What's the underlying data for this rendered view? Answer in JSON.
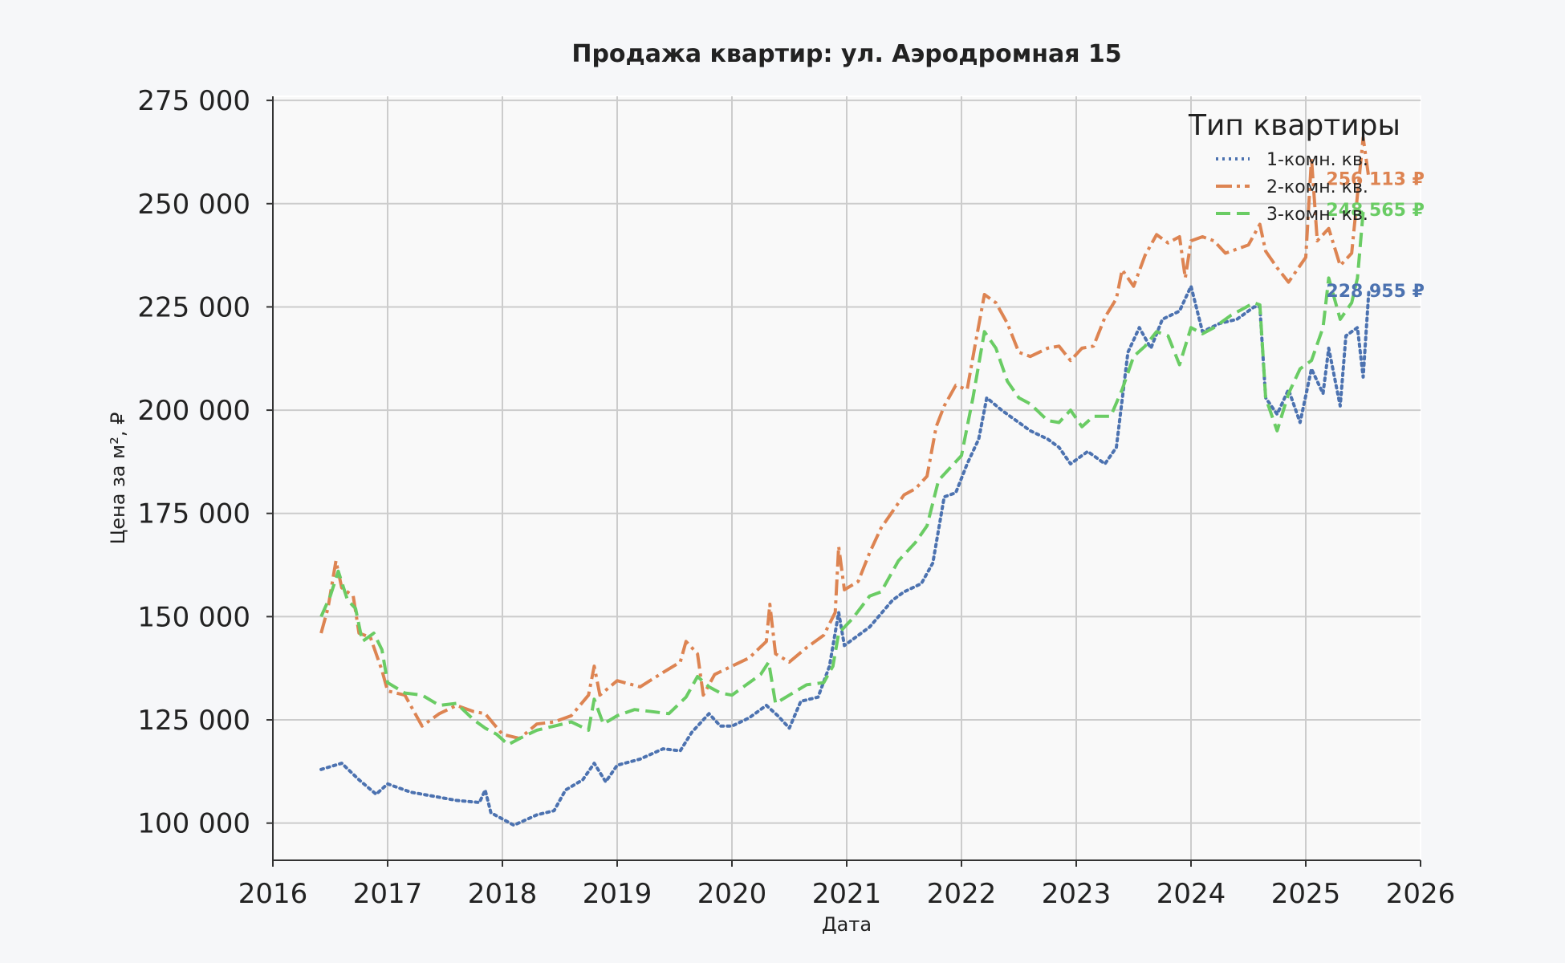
{
  "chart_data": {
    "type": "line",
    "title": "Продажа квартир: ул. Аэродромная 15",
    "xlabel": "Дата",
    "ylabel": "Цена за м², ₽",
    "xlim": [
      2016.0,
      2026.0
    ],
    "ylim": [
      91000,
      276000
    ],
    "x_ticks": [
      2016,
      2017,
      2018,
      2019,
      2020,
      2021,
      2022,
      2023,
      2024,
      2025,
      2026
    ],
    "x_tick_labels": [
      "2016",
      "2017",
      "2018",
      "2019",
      "2020",
      "2021",
      "2022",
      "2023",
      "2024",
      "2025",
      "2026"
    ],
    "y_ticks": [
      100000,
      125000,
      150000,
      175000,
      200000,
      225000,
      250000,
      275000
    ],
    "y_tick_labels": [
      "100 000",
      "125 000",
      "150 000",
      "175 000",
      "200 000",
      "225 000",
      "250 000",
      "275 000"
    ],
    "grid": true,
    "legend": {
      "title": "Тип квартиры",
      "placement": "top-right"
    },
    "series": [
      {
        "name": "1-комн. кв.",
        "color": "#4c72b0",
        "dash": "dotted",
        "end_label": "228 955 ₽",
        "points": [
          [
            2016.42,
            113000
          ],
          [
            2016.6,
            114500
          ],
          [
            2016.75,
            110500
          ],
          [
            2016.9,
            107000
          ],
          [
            2017.0,
            109500
          ],
          [
            2017.2,
            107500
          ],
          [
            2017.4,
            106500
          ],
          [
            2017.6,
            105500
          ],
          [
            2017.8,
            105000
          ],
          [
            2017.85,
            108000
          ],
          [
            2017.9,
            102500
          ],
          [
            2018.0,
            101000
          ],
          [
            2018.1,
            99500
          ],
          [
            2018.3,
            102000
          ],
          [
            2018.45,
            103000
          ],
          [
            2018.55,
            108000
          ],
          [
            2018.7,
            110500
          ],
          [
            2018.8,
            114500
          ],
          [
            2018.9,
            110000
          ],
          [
            2019.0,
            114000
          ],
          [
            2019.2,
            115500
          ],
          [
            2019.4,
            118000
          ],
          [
            2019.55,
            117500
          ],
          [
            2019.65,
            122000
          ],
          [
            2019.8,
            126500
          ],
          [
            2019.9,
            123500
          ],
          [
            2020.0,
            123500
          ],
          [
            2020.15,
            125500
          ],
          [
            2020.3,
            128500
          ],
          [
            2020.4,
            126000
          ],
          [
            2020.5,
            123000
          ],
          [
            2020.6,
            129500
          ],
          [
            2020.75,
            130500
          ],
          [
            2020.85,
            138000
          ],
          [
            2020.93,
            151000
          ],
          [
            2020.98,
            143000
          ],
          [
            2021.2,
            147500
          ],
          [
            2021.4,
            154000
          ],
          [
            2021.5,
            156000
          ],
          [
            2021.65,
            158000
          ],
          [
            2021.75,
            163000
          ],
          [
            2021.85,
            179000
          ],
          [
            2021.95,
            180000
          ],
          [
            2022.05,
            187000
          ],
          [
            2022.15,
            193000
          ],
          [
            2022.22,
            203000
          ],
          [
            2022.35,
            200000
          ],
          [
            2022.5,
            197000
          ],
          [
            2022.6,
            195000
          ],
          [
            2022.75,
            193000
          ],
          [
            2022.85,
            191000
          ],
          [
            2022.95,
            187000
          ],
          [
            2023.1,
            190000
          ],
          [
            2023.25,
            187000
          ],
          [
            2023.35,
            191000
          ],
          [
            2023.45,
            214000
          ],
          [
            2023.55,
            220000
          ],
          [
            2023.65,
            215000
          ],
          [
            2023.75,
            222000
          ],
          [
            2023.9,
            224000
          ],
          [
            2024.0,
            230000
          ],
          [
            2024.1,
            219000
          ],
          [
            2024.25,
            221000
          ],
          [
            2024.4,
            222000
          ],
          [
            2024.55,
            225000
          ],
          [
            2024.6,
            225000
          ],
          [
            2024.65,
            203000
          ],
          [
            2024.75,
            199000
          ],
          [
            2024.85,
            205000
          ],
          [
            2024.95,
            197000
          ],
          [
            2025.05,
            210000
          ],
          [
            2025.15,
            204000
          ],
          [
            2025.2,
            215000
          ],
          [
            2025.3,
            201000
          ],
          [
            2025.35,
            218000
          ],
          [
            2025.45,
            220000
          ],
          [
            2025.5,
            208000
          ],
          [
            2025.55,
            228955
          ]
        ]
      },
      {
        "name": "2-комн. кв.",
        "color": "#dd8452",
        "dash": "dashdot",
        "end_label": "256 113 ₽",
        "points": [
          [
            2016.42,
            146000
          ],
          [
            2016.48,
            152000
          ],
          [
            2016.55,
            163500
          ],
          [
            2016.6,
            157000
          ],
          [
            2016.7,
            155000
          ],
          [
            2016.75,
            146000
          ],
          [
            2016.85,
            145000
          ],
          [
            2016.95,
            137000
          ],
          [
            2017.0,
            132000
          ],
          [
            2017.15,
            131000
          ],
          [
            2017.3,
            123500
          ],
          [
            2017.45,
            126500
          ],
          [
            2017.6,
            128500
          ],
          [
            2017.75,
            127000
          ],
          [
            2017.85,
            126500
          ],
          [
            2018.0,
            121500
          ],
          [
            2018.15,
            120500
          ],
          [
            2018.3,
            124000
          ],
          [
            2018.45,
            124500
          ],
          [
            2018.6,
            126000
          ],
          [
            2018.75,
            131000
          ],
          [
            2018.8,
            138000
          ],
          [
            2018.85,
            131000
          ],
          [
            2019.0,
            134500
          ],
          [
            2019.2,
            133000
          ],
          [
            2019.4,
            136500
          ],
          [
            2019.55,
            139000
          ],
          [
            2019.6,
            144000
          ],
          [
            2019.7,
            141000
          ],
          [
            2019.75,
            131000
          ],
          [
            2019.85,
            136000
          ],
          [
            2020.0,
            138000
          ],
          [
            2020.15,
            140000
          ],
          [
            2020.3,
            144000
          ],
          [
            2020.33,
            153000
          ],
          [
            2020.38,
            141000
          ],
          [
            2020.5,
            139000
          ],
          [
            2020.65,
            142500
          ],
          [
            2020.8,
            145500
          ],
          [
            2020.9,
            151000
          ],
          [
            2020.93,
            167000
          ],
          [
            2020.98,
            156500
          ],
          [
            2021.1,
            158500
          ],
          [
            2021.2,
            165500
          ],
          [
            2021.3,
            171500
          ],
          [
            2021.4,
            175500
          ],
          [
            2021.5,
            179500
          ],
          [
            2021.6,
            181000
          ],
          [
            2021.7,
            184000
          ],
          [
            2021.78,
            196000
          ],
          [
            2021.85,
            201000
          ],
          [
            2021.95,
            206000
          ],
          [
            2022.05,
            205000
          ],
          [
            2022.12,
            216000
          ],
          [
            2022.2,
            228000
          ],
          [
            2022.3,
            226000
          ],
          [
            2022.4,
            221000
          ],
          [
            2022.5,
            214000
          ],
          [
            2022.6,
            213000
          ],
          [
            2022.75,
            215000
          ],
          [
            2022.85,
            215500
          ],
          [
            2022.95,
            212000
          ],
          [
            2023.05,
            215000
          ],
          [
            2023.15,
            215500
          ],
          [
            2023.25,
            222500
          ],
          [
            2023.35,
            227000
          ],
          [
            2023.4,
            234000
          ],
          [
            2023.5,
            230000
          ],
          [
            2023.6,
            237500
          ],
          [
            2023.7,
            242500
          ],
          [
            2023.8,
            240500
          ],
          [
            2023.9,
            242000
          ],
          [
            2023.95,
            232000
          ],
          [
            2024.0,
            241000
          ],
          [
            2024.1,
            242000
          ],
          [
            2024.2,
            241000
          ],
          [
            2024.3,
            238000
          ],
          [
            2024.4,
            239000
          ],
          [
            2024.5,
            240000
          ],
          [
            2024.6,
            245000
          ],
          [
            2024.65,
            238500
          ],
          [
            2024.75,
            234500
          ],
          [
            2024.85,
            231000
          ],
          [
            2025.0,
            237000
          ],
          [
            2025.05,
            261000
          ],
          [
            2025.1,
            241000
          ],
          [
            2025.2,
            244000
          ],
          [
            2025.3,
            235000
          ],
          [
            2025.4,
            238000
          ],
          [
            2025.5,
            266000
          ],
          [
            2025.55,
            256113
          ]
        ]
      },
      {
        "name": "3-комн. кв.",
        "color": "#6acc64",
        "dash": "dashed",
        "end_label": "248 565 ₽",
        "points": [
          [
            2016.42,
            150000
          ],
          [
            2016.5,
            155000
          ],
          [
            2016.57,
            161000
          ],
          [
            2016.65,
            154000
          ],
          [
            2016.72,
            152000
          ],
          [
            2016.78,
            144000
          ],
          [
            2016.88,
            146000
          ],
          [
            2016.95,
            142000
          ],
          [
            2017.0,
            134000
          ],
          [
            2017.15,
            131500
          ],
          [
            2017.3,
            131000
          ],
          [
            2017.45,
            128500
          ],
          [
            2017.6,
            129000
          ],
          [
            2017.75,
            125000
          ],
          [
            2017.85,
            123000
          ],
          [
            2017.95,
            121500
          ],
          [
            2018.05,
            119000
          ],
          [
            2018.15,
            120500
          ],
          [
            2018.3,
            122500
          ],
          [
            2018.45,
            123500
          ],
          [
            2018.6,
            124500
          ],
          [
            2018.75,
            122500
          ],
          [
            2018.8,
            130000
          ],
          [
            2018.88,
            124000
          ],
          [
            2019.0,
            126000
          ],
          [
            2019.15,
            127500
          ],
          [
            2019.3,
            127000
          ],
          [
            2019.45,
            126500
          ],
          [
            2019.6,
            130500
          ],
          [
            2019.7,
            135500
          ],
          [
            2019.8,
            133000
          ],
          [
            2019.9,
            131500
          ],
          [
            2020.0,
            131000
          ],
          [
            2020.1,
            133000
          ],
          [
            2020.25,
            136000
          ],
          [
            2020.32,
            139000
          ],
          [
            2020.38,
            129000
          ],
          [
            2020.5,
            131000
          ],
          [
            2020.65,
            133500
          ],
          [
            2020.8,
            134000
          ],
          [
            2020.88,
            138000
          ],
          [
            2020.93,
            146000
          ],
          [
            2021.05,
            149500
          ],
          [
            2021.2,
            155000
          ],
          [
            2021.3,
            156000
          ],
          [
            2021.45,
            163500
          ],
          [
            2021.6,
            168000
          ],
          [
            2021.7,
            172000
          ],
          [
            2021.8,
            183000
          ],
          [
            2021.9,
            186000
          ],
          [
            2022.0,
            189000
          ],
          [
            2022.1,
            203000
          ],
          [
            2022.2,
            219000
          ],
          [
            2022.3,
            215000
          ],
          [
            2022.4,
            207000
          ],
          [
            2022.5,
            203000
          ],
          [
            2022.6,
            201500
          ],
          [
            2022.75,
            197500
          ],
          [
            2022.85,
            197000
          ],
          [
            2022.95,
            200000
          ],
          [
            2023.05,
            196000
          ],
          [
            2023.15,
            198500
          ],
          [
            2023.3,
            198500
          ],
          [
            2023.4,
            205000
          ],
          [
            2023.5,
            213000
          ],
          [
            2023.6,
            215500
          ],
          [
            2023.7,
            219000
          ],
          [
            2023.8,
            218000
          ],
          [
            2023.9,
            211000
          ],
          [
            2024.0,
            220000
          ],
          [
            2024.1,
            218500
          ],
          [
            2024.2,
            220000
          ],
          [
            2024.35,
            223000
          ],
          [
            2024.45,
            224500
          ],
          [
            2024.55,
            226000
          ],
          [
            2024.6,
            225500
          ],
          [
            2024.65,
            203000
          ],
          [
            2024.75,
            195000
          ],
          [
            2024.85,
            204000
          ],
          [
            2024.95,
            210000
          ],
          [
            2025.05,
            212000
          ],
          [
            2025.15,
            220000
          ],
          [
            2025.2,
            232000
          ],
          [
            2025.3,
            222000
          ],
          [
            2025.4,
            226000
          ],
          [
            2025.45,
            232000
          ],
          [
            2025.5,
            248000
          ],
          [
            2025.55,
            248565
          ]
        ]
      }
    ]
  }
}
